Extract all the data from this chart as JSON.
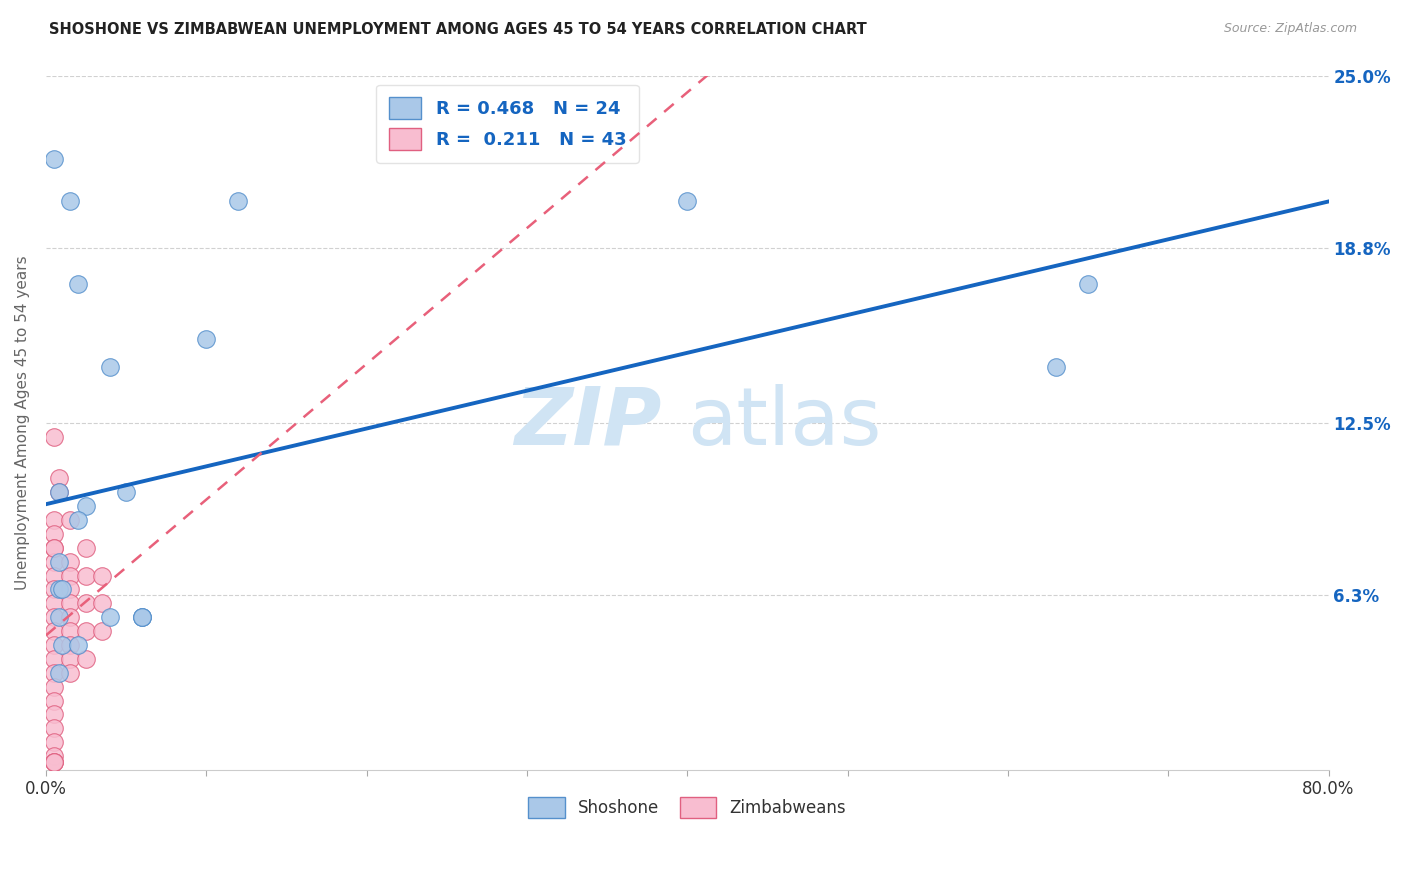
{
  "title": "SHOSHONE VS ZIMBABWEAN UNEMPLOYMENT AMONG AGES 45 TO 54 YEARS CORRELATION CHART",
  "source": "Source: ZipAtlas.com",
  "ylabel": "Unemployment Among Ages 45 to 54 years",
  "xlim": [
    0,
    0.8
  ],
  "ylim": [
    0,
    0.25
  ],
  "xtick_vals": [
    0.0,
    0.1,
    0.2,
    0.3,
    0.4,
    0.5,
    0.6,
    0.7,
    0.8
  ],
  "xtick_labels_show": {
    "0.0": "0.0%",
    "0.8": "80.0%"
  },
  "ytick_vals_right": [
    0.063,
    0.125,
    0.188,
    0.25
  ],
  "ytick_labels_right": [
    "6.3%",
    "12.5%",
    "18.8%",
    "25.0%"
  ],
  "shoshone_x": [
    0.005,
    0.015,
    0.12,
    0.02,
    0.04,
    0.4,
    0.008,
    0.025,
    0.05,
    0.008,
    0.06,
    0.008,
    0.06,
    0.1,
    0.04,
    0.06,
    0.65,
    0.63,
    0.01,
    0.01,
    0.02,
    0.008,
    0.008,
    0.02
  ],
  "shoshone_y": [
    0.22,
    0.205,
    0.205,
    0.175,
    0.145,
    0.205,
    0.1,
    0.095,
    0.1,
    0.075,
    0.055,
    0.065,
    0.055,
    0.155,
    0.055,
    0.055,
    0.175,
    0.145,
    0.065,
    0.045,
    0.045,
    0.035,
    0.055,
    0.09
  ],
  "zimbabwean_x": [
    0.005,
    0.005,
    0.005,
    0.005,
    0.005,
    0.005,
    0.005,
    0.005,
    0.005,
    0.005,
    0.005,
    0.005,
    0.005,
    0.005,
    0.005,
    0.005,
    0.005,
    0.005,
    0.005,
    0.005,
    0.005,
    0.005,
    0.005,
    0.015,
    0.015,
    0.015,
    0.015,
    0.015,
    0.015,
    0.015,
    0.015,
    0.015,
    0.015,
    0.025,
    0.025,
    0.025,
    0.025,
    0.025,
    0.035,
    0.035,
    0.035,
    0.008,
    0.008
  ],
  "zimbabwean_y": [
    0.09,
    0.085,
    0.08,
    0.075,
    0.07,
    0.065,
    0.06,
    0.055,
    0.05,
    0.045,
    0.04,
    0.035,
    0.03,
    0.025,
    0.02,
    0.015,
    0.01,
    0.005,
    0.003,
    0.003,
    0.003,
    0.12,
    0.08,
    0.09,
    0.075,
    0.07,
    0.065,
    0.06,
    0.055,
    0.05,
    0.045,
    0.04,
    0.035,
    0.08,
    0.07,
    0.06,
    0.05,
    0.04,
    0.07,
    0.06,
    0.05,
    0.105,
    0.1
  ],
  "shoshone_color": "#aac8e8",
  "shoshone_edge_color": "#5590cc",
  "zimbabwean_color": "#f8bdd0",
  "zimbabwean_edge_color": "#e06080",
  "regression_shoshone_color": "#1565c0",
  "regression_zimbabwean_color": "#e8607a",
  "R_shoshone": 0.468,
  "N_shoshone": 24,
  "R_zimbabwean": 0.211,
  "N_zimbabwean": 43,
  "watermark_zip": "ZIP",
  "watermark_atlas": "atlas",
  "watermark_color": "#d0e4f4",
  "grid_color": "#cccccc",
  "axis_label_color": "#1565c0",
  "background_color": "#ffffff",
  "marker_size": 160,
  "reg_line_intercept_shoshone": 0.095,
  "reg_line_slope_shoshone": 0.165,
  "reg_line_intercept_zimbabwean": 0.03,
  "reg_line_slope_zimbabwean": 1.8
}
